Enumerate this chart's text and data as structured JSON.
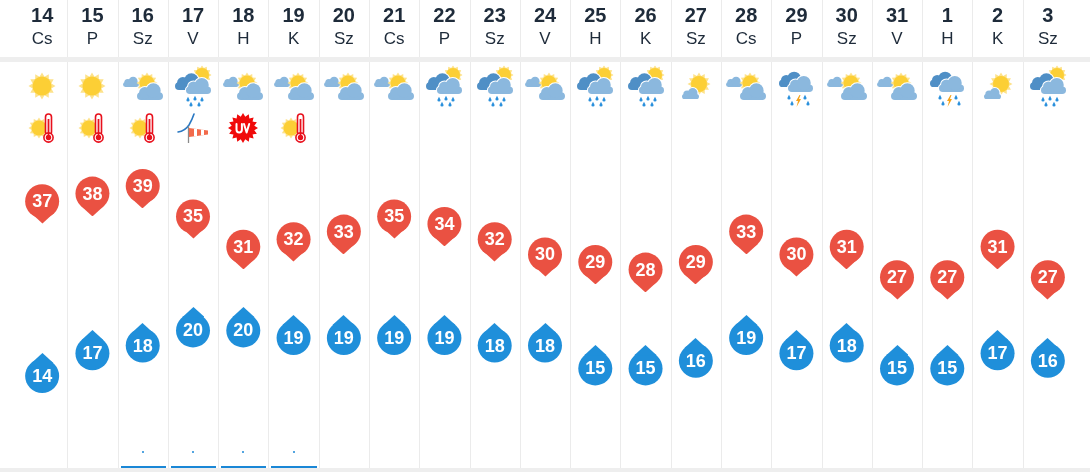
{
  "chart_data": {
    "type": "scatter",
    "categories": [
      "14\nCs",
      "15\nP",
      "16\nSz",
      "17\nV",
      "18\nH",
      "19\nK",
      "20\nSz",
      "21\nCs",
      "22\nP",
      "23\nSz",
      "24\nV",
      "25\nH",
      "26\nK",
      "27\nSz",
      "28\nCs",
      "29\nP",
      "30\nSz",
      "31\nV",
      "1\nH",
      "2\nK",
      "3\nSz"
    ],
    "series": [
      {
        "color": "#ea5142",
        "values": [
          37,
          38,
          39,
          35,
          31,
          32,
          33,
          35,
          34,
          32,
          30,
          29,
          28,
          29,
          33,
          30,
          31,
          27,
          27,
          31,
          27
        ]
      },
      {
        "color": "#1f8fda",
        "values": [
          14,
          17,
          18,
          20,
          20,
          19,
          19,
          19,
          19,
          18,
          18,
          15,
          15,
          16,
          19,
          17,
          18,
          15,
          15,
          17,
          16
        ]
      }
    ],
    "marker": "circle",
    "data_labels": true,
    "grid": "x",
    "tick_labels": "x",
    "legend": false
  }
}
